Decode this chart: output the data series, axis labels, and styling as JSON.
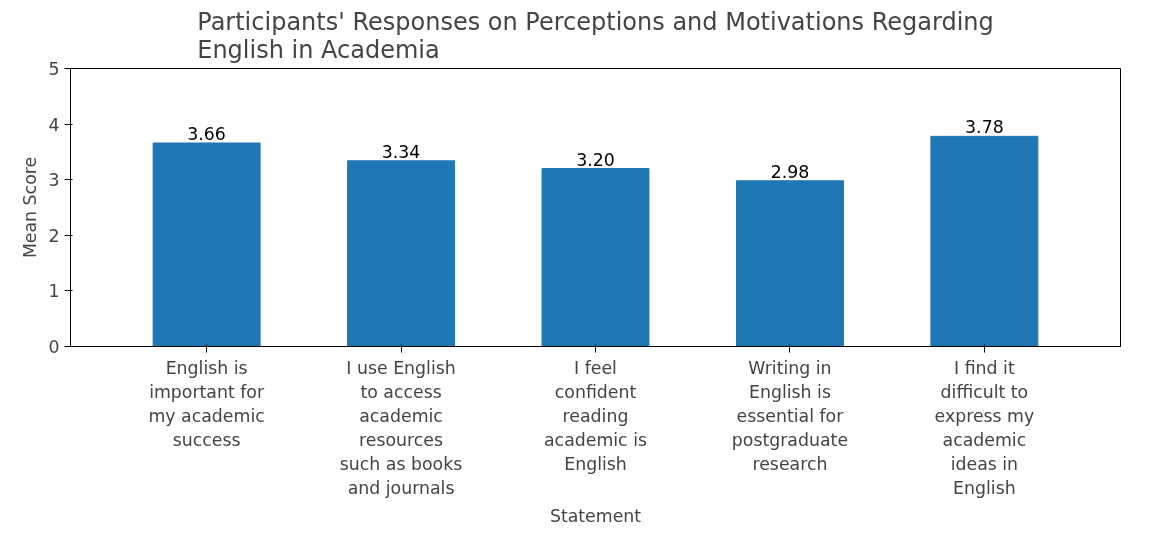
{
  "chart_data": {
    "type": "bar",
    "title": "Participants' Responses on Perceptions and Motivations Regarding English in Academia",
    "xlabel": "Statement",
    "ylabel": "Mean Score",
    "categories": [
      "English is important for my academic success",
      "I use English to access academic resources such as books and journals",
      "I feel confident reading academic is English",
      "Writing in English is essential for postgraduate research",
      "I find it difficult to express my academic ideas in English"
    ],
    "values": [
      3.66,
      3.34,
      3.2,
      2.98,
      3.78
    ],
    "value_labels": [
      "3.66",
      "3.34",
      "3.20",
      "2.98",
      "3.78"
    ],
    "color": "#1f77b4",
    "ylim": [
      0,
      5
    ],
    "yticks": [
      0,
      1,
      2,
      3,
      4,
      5
    ],
    "grid": false
  }
}
